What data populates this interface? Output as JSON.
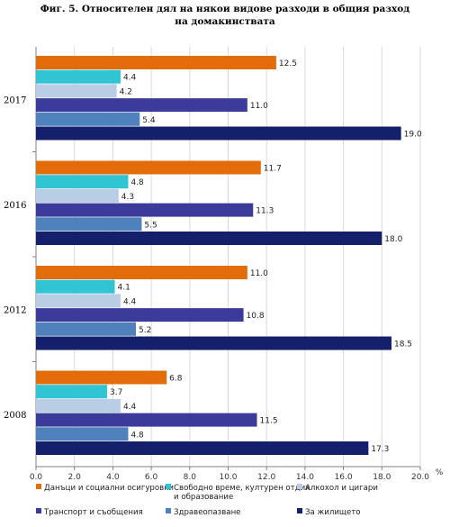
{
  "chart_data": {
    "type": "bar",
    "orientation": "horizontal",
    "title": "Фиг. 5. Относителен дял на някои видове разходи в общия разход на домакинствата",
    "title_lines": [
      "Фиг. 5. Относителен дял на някои видове разходи в общия разход",
      "на домакинствата"
    ],
    "unit": "%",
    "categories": [
      "2017",
      "2016",
      "2012",
      "2008"
    ],
    "xlim": [
      0,
      20
    ],
    "xticks": [
      "0.0",
      "2.0",
      "4.0",
      "6.0",
      "8.0",
      "10.0",
      "12.0",
      "14.0",
      "16.0",
      "18.0",
      "20.0"
    ],
    "grid": true,
    "legend_position": "bottom",
    "series": [
      {
        "name": "Данъци и социални осигуровки",
        "color": "#e36c0a",
        "values": [
          12.5,
          11.7,
          11.0,
          6.8
        ]
      },
      {
        "name": "Свободно време, културен отдих и образование",
        "legend_lines": [
          "Свободно време, културен отдих",
          "и образование"
        ],
        "color": "#31c5d4",
        "values": [
          4.4,
          4.8,
          4.1,
          3.7
        ]
      },
      {
        "name": "Алкохол и цигари",
        "color": "#b9cde5",
        "values": [
          4.2,
          4.3,
          4.4,
          4.4
        ]
      },
      {
        "name": "Транспорт и съобщения",
        "color": "#3b3b99",
        "values": [
          11.0,
          11.3,
          10.8,
          11.5
        ]
      },
      {
        "name": "Здравеопазване",
        "color": "#4f81bd",
        "values": [
          5.4,
          5.5,
          5.2,
          4.8
        ]
      },
      {
        "name": "За жилището",
        "color": "#14206b",
        "values": [
          19.0,
          18.0,
          18.5,
          17.3
        ]
      }
    ]
  }
}
